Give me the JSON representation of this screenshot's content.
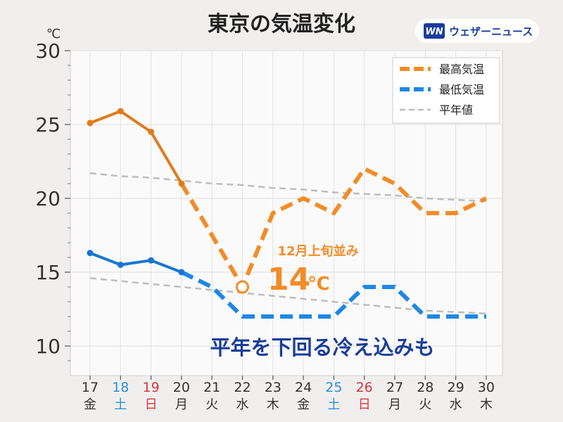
{
  "header": {
    "title": "東京の気温変化",
    "brand_mark": "WN",
    "brand_name": "ウェザーニュース"
  },
  "colors": {
    "high": "#f28c28",
    "high_observed": "#e07b1c",
    "low": "#1e88e5",
    "low_observed": "#1976d2",
    "normal": "#bdbdbd",
    "saturday": "#2e8fd6",
    "sunday": "#d9363e",
    "weekday": "#333333",
    "message": "#1a3d9b"
  },
  "chart_data": {
    "type": "line",
    "unit": "℃",
    "ylim": [
      8,
      30
    ],
    "yticks": [
      10,
      15,
      20,
      25,
      30
    ],
    "grid": true,
    "legend_position": "top-right",
    "categories": [
      "17",
      "18",
      "19",
      "20",
      "21",
      "22",
      "23",
      "24",
      "25",
      "26",
      "27",
      "28",
      "29",
      "30"
    ],
    "weekdays": [
      "金",
      "土",
      "日",
      "月",
      "火",
      "水",
      "木",
      "金",
      "土",
      "日",
      "月",
      "火",
      "水",
      "木"
    ],
    "series": [
      {
        "name": "最高気温",
        "style": "dashed",
        "observed_count": 4,
        "values": [
          25.1,
          25.9,
          24.5,
          21,
          17.5,
          14,
          19,
          20,
          19,
          22,
          21,
          19,
          19,
          20
        ]
      },
      {
        "name": "最低気温",
        "style": "dashed",
        "observed_count": 4,
        "values": [
          16.3,
          15.5,
          15.8,
          15,
          14,
          12,
          12,
          12,
          12,
          14,
          14,
          12,
          12,
          12
        ]
      },
      {
        "name": "平年値",
        "style": "dashed-thin",
        "values_high": [
          21.7,
          21.5,
          21.4,
          21.2,
          21.0,
          20.9,
          20.7,
          20.6,
          20.4,
          20.3,
          20.2,
          20.0,
          19.9,
          19.8
        ],
        "values_low": [
          14.6,
          14.4,
          14.2,
          14.0,
          13.8,
          13.6,
          13.4,
          13.2,
          13.0,
          12.8,
          12.6,
          12.4,
          12.3,
          12.2
        ]
      }
    ],
    "annotations": {
      "min_high_label": "12月上旬並み",
      "min_high_value": "14",
      "min_high_unit": "℃",
      "message": "平年を下回る冷え込みも"
    }
  }
}
